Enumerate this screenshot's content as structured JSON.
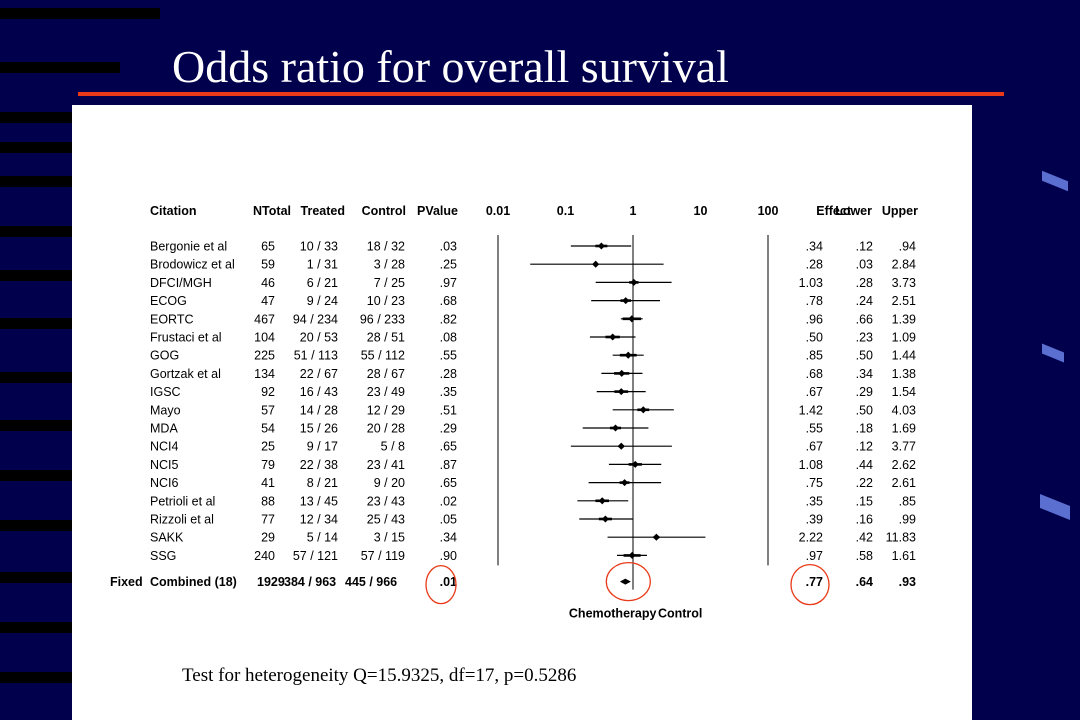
{
  "slide": {
    "title": "Odds ratio for overall survival",
    "heterogeneity_text": "Test for heterogeneity Q=15.9325, df=17, p=0.5286",
    "accent_color": "#e83a18",
    "background_color": "#00004d"
  },
  "chart_data": {
    "type": "forest",
    "x_scale": "log",
    "xlim": [
      0.01,
      100
    ],
    "x_ticks": [
      "0.01",
      "0.1",
      "1",
      "10",
      "100"
    ],
    "reference_line": 1,
    "headers": {
      "citation": "Citation",
      "ntotal": "NTotal",
      "treated": "Treated",
      "control": "Control",
      "pvalue": "PValue",
      "effect": "Effect",
      "lower": "Lower",
      "upper": "Upper"
    },
    "favours_left": "Chemotherapy",
    "favours_right": "Control",
    "studies": [
      {
        "citation": "Bergonie et al",
        "ntotal": "65",
        "treated": "10 / 33",
        "control": "18 / 32",
        "pvalue": ".03",
        "effect": ".34",
        "lower": ".12",
        "upper": ".94",
        "effect_value": 0.34,
        "lower_value": 0.12,
        "upper_value": 0.94
      },
      {
        "citation": "Brodowicz et al",
        "ntotal": "59",
        "treated": "1 / 31",
        "control": "3 / 28",
        "pvalue": ".25",
        "effect": ".28",
        "lower": ".03",
        "upper": "2.84",
        "effect_value": 0.28,
        "lower_value": 0.03,
        "upper_value": 2.84
      },
      {
        "citation": "DFCI/MGH",
        "ntotal": "46",
        "treated": "6 / 21",
        "control": "7 / 25",
        "pvalue": ".97",
        "effect": "1.03",
        "lower": ".28",
        "upper": "3.73",
        "effect_value": 1.03,
        "lower_value": 0.28,
        "upper_value": 3.73
      },
      {
        "citation": "ECOG",
        "ntotal": "47",
        "treated": "9 / 24",
        "control": "10 / 23",
        "pvalue": ".68",
        "effect": ".78",
        "lower": ".24",
        "upper": "2.51",
        "effect_value": 0.78,
        "lower_value": 0.24,
        "upper_value": 2.51
      },
      {
        "citation": "EORTC",
        "ntotal": "467",
        "treated": "94 / 234",
        "control": "96 / 233",
        "pvalue": ".82",
        "effect": ".96",
        "lower": ".66",
        "upper": "1.39",
        "effect_value": 0.96,
        "lower_value": 0.66,
        "upper_value": 1.39
      },
      {
        "citation": "Frustaci  et al",
        "ntotal": "104",
        "treated": "20 / 53",
        "control": "28 / 51",
        "pvalue": ".08",
        "effect": ".50",
        "lower": ".23",
        "upper": "1.09",
        "effect_value": 0.5,
        "lower_value": 0.23,
        "upper_value": 1.09
      },
      {
        "citation": "GOG",
        "ntotal": "225",
        "treated": "51 / 113",
        "control": "55 / 112",
        "pvalue": ".55",
        "effect": ".85",
        "lower": ".50",
        "upper": "1.44",
        "effect_value": 0.85,
        "lower_value": 0.5,
        "upper_value": 1.44
      },
      {
        "citation": "Gortzak et al",
        "ntotal": "134",
        "treated": "22 / 67",
        "control": "28 / 67",
        "pvalue": ".28",
        "effect": ".68",
        "lower": ".34",
        "upper": "1.38",
        "effect_value": 0.68,
        "lower_value": 0.34,
        "upper_value": 1.38
      },
      {
        "citation": "IGSC",
        "ntotal": "92",
        "treated": "16 / 43",
        "control": "23 / 49",
        "pvalue": ".35",
        "effect": ".67",
        "lower": ".29",
        "upper": "1.54",
        "effect_value": 0.67,
        "lower_value": 0.29,
        "upper_value": 1.54
      },
      {
        "citation": "Mayo",
        "ntotal": "57",
        "treated": "14 / 28",
        "control": "12 / 29",
        "pvalue": ".51",
        "effect": "1.42",
        "lower": ".50",
        "upper": "4.03",
        "effect_value": 1.42,
        "lower_value": 0.5,
        "upper_value": 4.03
      },
      {
        "citation": "MDA",
        "ntotal": "54",
        "treated": "15 / 26",
        "control": "20 / 28",
        "pvalue": ".29",
        "effect": ".55",
        "lower": ".18",
        "upper": "1.69",
        "effect_value": 0.55,
        "lower_value": 0.18,
        "upper_value": 1.69
      },
      {
        "citation": "NCI4",
        "ntotal": "25",
        "treated": "9 / 17",
        "control": "5 / 8",
        "pvalue": ".65",
        "effect": ".67",
        "lower": ".12",
        "upper": "3.77",
        "effect_value": 0.67,
        "lower_value": 0.12,
        "upper_value": 3.77
      },
      {
        "citation": "NCI5",
        "ntotal": "79",
        "treated": "22 / 38",
        "control": "23 / 41",
        "pvalue": ".87",
        "effect": "1.08",
        "lower": ".44",
        "upper": "2.62",
        "effect_value": 1.08,
        "lower_value": 0.44,
        "upper_value": 2.62
      },
      {
        "citation": "NCI6",
        "ntotal": "41",
        "treated": "8 / 21",
        "control": "9 / 20",
        "pvalue": ".65",
        "effect": ".75",
        "lower": ".22",
        "upper": "2.61",
        "effect_value": 0.75,
        "lower_value": 0.22,
        "upper_value": 2.61
      },
      {
        "citation": "Petrioli et al",
        "ntotal": "88",
        "treated": "13 / 45",
        "control": "23 / 43",
        "pvalue": ".02",
        "effect": ".35",
        "lower": ".15",
        "upper": ".85",
        "effect_value": 0.35,
        "lower_value": 0.15,
        "upper_value": 0.85
      },
      {
        "citation": "Rizzoli et al",
        "ntotal": "77",
        "treated": "12 / 34",
        "control": "25 / 43",
        "pvalue": ".05",
        "effect": ".39",
        "lower": ".16",
        "upper": ".99",
        "effect_value": 0.39,
        "lower_value": 0.16,
        "upper_value": 0.99
      },
      {
        "citation": "SAKK",
        "ntotal": "29",
        "treated": "5 / 14",
        "control": "3 / 15",
        "pvalue": ".34",
        "effect": "2.22",
        "lower": ".42",
        "upper": "11.83",
        "effect_value": 2.22,
        "lower_value": 0.42,
        "upper_value": 11.83
      },
      {
        "citation": "SSG",
        "ntotal": "240",
        "treated": "57 / 121",
        "control": "57 / 119",
        "pvalue": ".90",
        "effect": ".97",
        "lower": ".58",
        "upper": "1.61",
        "effect_value": 0.97,
        "lower_value": 0.58,
        "upper_value": 1.61
      }
    ],
    "combined": {
      "model": "Fixed",
      "citation": "Combined (18)",
      "ntotal": "1929",
      "treated": "384 / 963",
      "control": "445 / 966",
      "pvalue": ".01",
      "effect": ".77",
      "lower": ".64",
      "upper": ".93",
      "effect_value": 0.77,
      "lower_value": 0.64,
      "upper_value": 0.93
    },
    "highlight_color": "#e83a18"
  }
}
